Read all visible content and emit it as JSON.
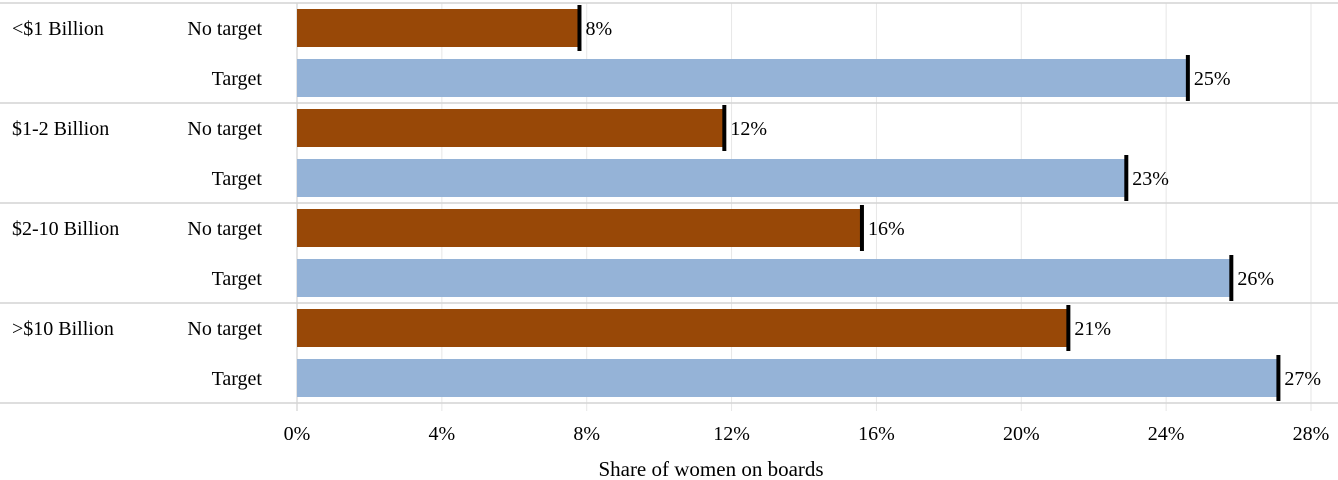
{
  "chart_data": {
    "type": "bar",
    "orientation": "horizontal",
    "title": "",
    "xlabel": "Share of women on boards",
    "ylabel": "",
    "xlim": [
      0,
      28
    ],
    "x_ticks": [
      0,
      4,
      8,
      12,
      16,
      20,
      24,
      28
    ],
    "x_tick_labels": [
      "0%",
      "4%",
      "8%",
      "12%",
      "16%",
      "20%",
      "24%",
      "28%"
    ],
    "grid": "vertical",
    "groups": [
      {
        "name": "<$1 Billion",
        "bars": [
          {
            "label": "No target",
            "value": 7.8,
            "display": "8%",
            "color": "#984807"
          },
          {
            "label": "Target",
            "value": 24.6,
            "display": "25%",
            "color": "#95B3D7"
          }
        ]
      },
      {
        "name": "$1-2 Billion",
        "bars": [
          {
            "label": "No target",
            "value": 11.8,
            "display": "12%",
            "color": "#984807"
          },
          {
            "label": "Target",
            "value": 22.9,
            "display": "23%",
            "color": "#95B3D7"
          }
        ]
      },
      {
        "name": "$2-10 Billion",
        "bars": [
          {
            "label": "No target",
            "value": 15.6,
            "display": "16%",
            "color": "#984807"
          },
          {
            "label": "Target",
            "value": 25.8,
            "display": "26%",
            "color": "#95B3D7"
          }
        ]
      },
      {
        "name": ">$10 Billion",
        "bars": [
          {
            "label": "No target",
            "value": 21.3,
            "display": "21%",
            "color": "#984807"
          },
          {
            "label": "Target",
            "value": 27.1,
            "display": "27%",
            "color": "#95B3D7"
          }
        ]
      }
    ]
  }
}
